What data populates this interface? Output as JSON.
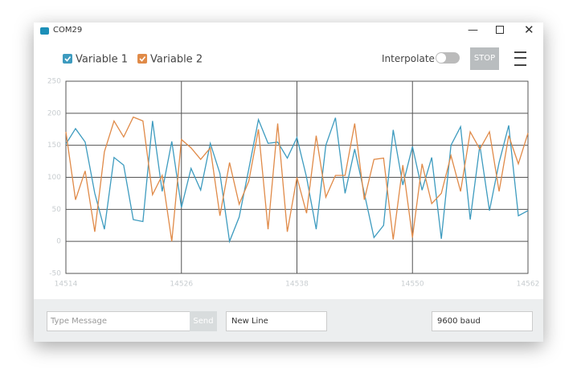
{
  "window": {
    "title": "COM29",
    "interpolate": "Interpolate",
    "stop": "STOP",
    "message_placeholder": "Type Message",
    "send": "Send",
    "line_ending": "New Line",
    "baud": "9600 baud"
  },
  "chart_data": {
    "type": "line",
    "x": [
      14514,
      14515,
      14516,
      14517,
      14518,
      14519,
      14520,
      14521,
      14522,
      14523,
      14524,
      14525,
      14526,
      14527,
      14528,
      14529,
      14530,
      14531,
      14532,
      14533,
      14534,
      14535,
      14536,
      14537,
      14538,
      14539,
      14540,
      14541,
      14542,
      14543,
      14544,
      14545,
      14546,
      14547,
      14548,
      14549,
      14550,
      14551,
      14552,
      14553,
      14554,
      14555,
      14556,
      14557,
      14558,
      14559,
      14560,
      14561,
      14562
    ],
    "series": [
      {
        "name": "Variable 1",
        "color": "#3d9bbf",
        "values": [
          152,
          176,
          155,
          75,
          19,
          131,
          119,
          34,
          31,
          188,
          78,
          156,
          53,
          114,
          80,
          153,
          106,
          0,
          38,
          113,
          190,
          153,
          155,
          130,
          162,
          100,
          19,
          150,
          193,
          75,
          144,
          75,
          6,
          25,
          174,
          88,
          148,
          80,
          131,
          4,
          150,
          179,
          34,
          150,
          48,
          123,
          181,
          40,
          48
        ]
      },
      {
        "name": "Variable 2",
        "color": "#e08a48",
        "values": [
          171,
          65,
          110,
          15,
          140,
          188,
          163,
          194,
          188,
          73,
          103,
          0,
          159,
          146,
          128,
          146,
          40,
          123,
          58,
          94,
          175,
          19,
          184,
          15,
          100,
          44,
          165,
          69,
          103,
          103,
          184,
          65,
          128,
          130,
          3,
          119,
          6,
          121,
          59,
          75,
          134,
          78,
          171,
          144,
          171,
          78,
          165,
          121,
          169
        ]
      }
    ],
    "xlim": [
      14514,
      14562
    ],
    "ylim": [
      -50,
      250
    ],
    "xticks": [
      14514,
      14526,
      14538,
      14550,
      14562
    ],
    "yticks": [
      -50,
      0,
      50,
      100,
      150,
      200,
      250
    ],
    "grid": true
  }
}
